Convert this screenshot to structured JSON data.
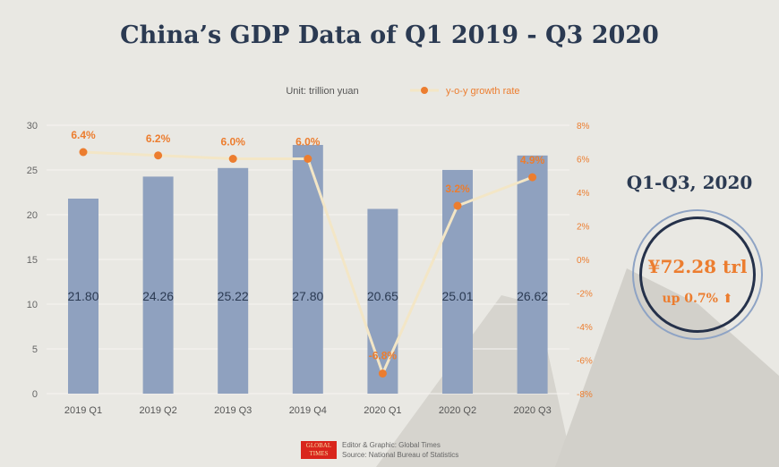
{
  "title": "China’s GDP Data of Q1 2019 - Q3 2020",
  "side_panel": {
    "title": "Q1-Q3, 2020",
    "total": "¥72.28 trl",
    "growth": "up 0.7%",
    "growth_icon": "up-arrow-icon"
  },
  "footer": {
    "logo": "GLOBAL TIMES",
    "editor": "Editor & Graphic: Global Times",
    "source": "Source: National Bureau of Statistics"
  },
  "colors": {
    "bar": "#8fa1bf",
    "line": "#f3e6c6",
    "marker": "#ec7d2f",
    "accent": "#ec7d2f",
    "title": "#2b3a52"
  },
  "chart_data": {
    "type": "bar+line",
    "categories": [
      "2019 Q1",
      "2019 Q2",
      "2019 Q3",
      "2019 Q4",
      "2020 Q1",
      "2020 Q2",
      "2020 Q3"
    ],
    "unit_label": "Unit: trillion yuan",
    "series": [
      {
        "type": "bar",
        "axis": "left",
        "values": [
          21.8,
          24.26,
          25.22,
          27.8,
          20.65,
          25.01,
          26.62
        ],
        "labels": [
          "21.80",
          "24.26",
          "25.22",
          "27.80",
          "20.65",
          "25.01",
          "26.62"
        ]
      },
      {
        "type": "line",
        "axis": "right",
        "name": "y-o-y growth rate",
        "values": [
          6.4,
          6.2,
          6.0,
          6.0,
          -6.8,
          3.2,
          4.9
        ],
        "labels": [
          "6.4%",
          "6.2%",
          "6.0%",
          "6.0%",
          "-6.8%",
          "3.2%",
          "4.9%"
        ]
      }
    ],
    "ylim": [
      0,
      30
    ],
    "yticks": [
      "0",
      "5",
      "10",
      "15",
      "20",
      "25",
      "30"
    ],
    "y2lim": [
      -8,
      8
    ],
    "y2ticks": [
      "-8%",
      "-6%",
      "-4%",
      "-2%",
      "0%",
      "2%",
      "4%",
      "6%",
      "8%"
    ],
    "grid": true,
    "legend": "top"
  }
}
